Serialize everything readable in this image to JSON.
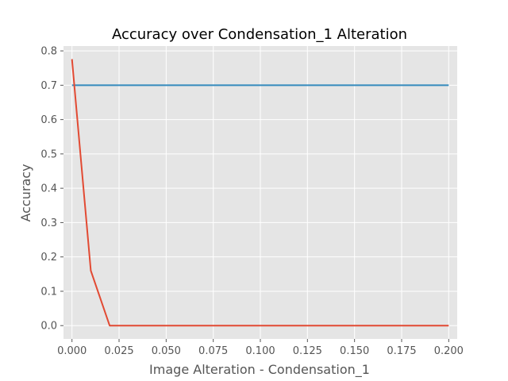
{
  "chart_data": {
    "type": "line",
    "title": "Accuracy over Condensation_1 Alteration",
    "xlabel": "Image Alteration - Condensation_1",
    "ylabel": "Accuracy",
    "xlim": [
      -0.0045,
      0.2045
    ],
    "ylim": [
      -0.0388,
      0.8141
    ],
    "xticks": [
      0.0,
      0.025,
      0.05,
      0.075,
      0.1,
      0.125,
      0.15,
      0.175,
      0.2
    ],
    "xtick_labels": [
      "0.000",
      "0.025",
      "0.050",
      "0.075",
      "0.100",
      "0.125",
      "0.150",
      "0.175",
      "0.200"
    ],
    "yticks": [
      0.0,
      0.1,
      0.2,
      0.3,
      0.4,
      0.5,
      0.6,
      0.7,
      0.8
    ],
    "ytick_labels": [
      "0.0",
      "0.1",
      "0.2",
      "0.3",
      "0.4",
      "0.5",
      "0.6",
      "0.7",
      "0.8"
    ],
    "grid": true,
    "background": "#e5e5e5",
    "series": [
      {
        "color": "#348abd",
        "x": [
          0.0,
          0.01,
          0.02,
          0.03,
          0.04,
          0.05,
          0.06,
          0.07,
          0.08,
          0.09,
          0.1,
          0.11,
          0.12,
          0.13,
          0.14,
          0.15,
          0.16,
          0.17,
          0.18,
          0.19,
          0.2
        ],
        "y": [
          0.7,
          0.7,
          0.7,
          0.7,
          0.7,
          0.7,
          0.7,
          0.7,
          0.7,
          0.7,
          0.7,
          0.7,
          0.7,
          0.7,
          0.7,
          0.7,
          0.7,
          0.7,
          0.7,
          0.7,
          0.7
        ]
      },
      {
        "color": "#e24a33",
        "x": [
          0.0,
          0.01,
          0.02,
          0.03,
          0.04,
          0.05,
          0.06,
          0.07,
          0.08,
          0.09,
          0.1,
          0.11,
          0.12,
          0.13,
          0.14,
          0.15,
          0.16,
          0.17,
          0.18,
          0.19,
          0.2
        ],
        "y": [
          0.776,
          0.16,
          0.0,
          0.0,
          0.0,
          0.0,
          0.0,
          0.0,
          0.0,
          0.0,
          0.0,
          0.0,
          0.0,
          0.0,
          0.0,
          0.0,
          0.0,
          0.0,
          0.0,
          0.0,
          0.0
        ]
      }
    ]
  }
}
